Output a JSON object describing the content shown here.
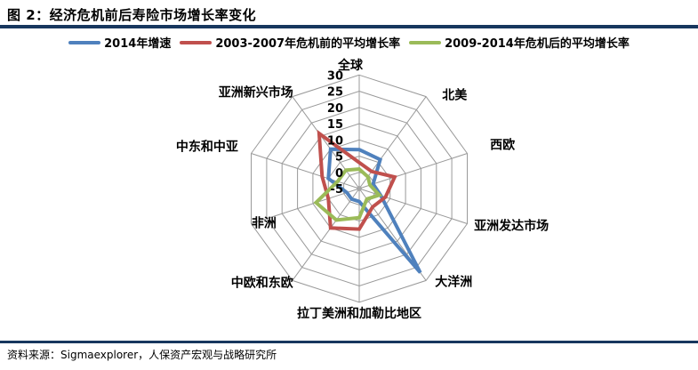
{
  "header": {
    "title": "图 2：经济危机前后寿险市场增长率变化"
  },
  "footer": {
    "source": "资料来源：Sigmaexplorer，人保资产宏观与战略研究所"
  },
  "colors": {
    "rule": "#17375E",
    "grid": "#999999",
    "center_marker": "#A6A6A6",
    "text": "#000000"
  },
  "chart_data": {
    "type": "radar",
    "categories": [
      "全球",
      "北美",
      "西欧",
      "亚洲发达市场",
      "大洋洲",
      "拉丁美洲和加勒比地区",
      "中欧和东欧",
      "非洲",
      "中东和中亚",
      "亚洲新兴市场"
    ],
    "series": [
      {
        "name": "2014年增速",
        "color": "#4F81BD",
        "values": [
          7,
          6,
          -0.5,
          2,
          27,
          -1,
          -1,
          -1,
          5,
          10
        ]
      },
      {
        "name": "2003-2007年危机前的平均增长率",
        "color": "#C0504D",
        "values": [
          3,
          1.5,
          6.5,
          3.5,
          2,
          7.5,
          10,
          5,
          7,
          16
        ]
      },
      {
        "name": "2009-2014年危机后的平均增长率",
        "color": "#9BBB59",
        "values": [
          1,
          -0.5,
          -1.5,
          1.5,
          -1,
          4,
          7,
          9,
          2,
          2
        ]
      }
    ],
    "axis": {
      "min": -5,
      "max": 30,
      "step": 5,
      "ticks": [
        30,
        25,
        20,
        15,
        10,
        5,
        0,
        -5
      ]
    },
    "grid": true,
    "legend_position": "top"
  }
}
